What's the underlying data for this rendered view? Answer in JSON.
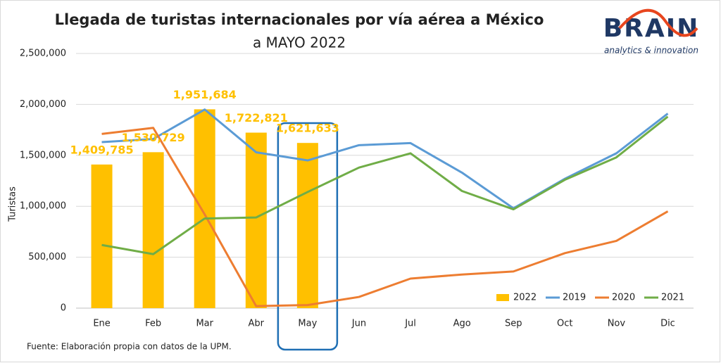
{
  "chart_data": {
    "type": "combo",
    "title": "Llegada de turistas internacionales por vía aérea a México",
    "subtitle": "a MAYO 2022",
    "y_label": "Turistas",
    "source": "Fuente: Elaboración propia con datos de la UPM.",
    "logo": {
      "text": "BRAIN",
      "tagline": "analytics & innovation"
    },
    "categories": [
      "Ene",
      "Feb",
      "Mar",
      "Abr",
      "May",
      "Jun",
      "Jul",
      "Ago",
      "Sep",
      "Oct",
      "Nov",
      "Dic"
    ],
    "highlight": "May",
    "ylim": [
      0,
      2500000
    ],
    "yticks": [
      0,
      {
        "value": 500000,
        "label": "500,000"
      },
      {
        "value": 1000000,
        "label": "1,000,000"
      },
      {
        "value": 1500000,
        "label": "1,500,000"
      },
      {
        "value": 2000000,
        "label": "2,000,000"
      },
      {
        "value": 2500000,
        "label": "2,500,000"
      }
    ],
    "grid": true,
    "legend": "bottom-right",
    "series": [
      {
        "name": "2022",
        "type": "bar",
        "color": "#ffc000",
        "values": [
          1409785,
          1530729,
          1951684,
          1722821,
          1621633,
          null,
          null,
          null,
          null,
          null,
          null,
          null
        ],
        "value_labels": [
          "1,409,785",
          "1,530,729",
          "1,951,684",
          "1,722,821",
          "1,621,633",
          null,
          null,
          null,
          null,
          null,
          null,
          null
        ]
      },
      {
        "name": "2019",
        "type": "line",
        "color": "#5b9bd5",
        "values": [
          1630000,
          1660000,
          1950000,
          1530000,
          1450000,
          1600000,
          1620000,
          1330000,
          980000,
          1270000,
          1520000,
          1910000
        ]
      },
      {
        "name": "2020",
        "type": "line",
        "color": "#ed7d31",
        "values": [
          1710000,
          1770000,
          920000,
          20000,
          30000,
          110000,
          290000,
          330000,
          360000,
          540000,
          660000,
          950000
        ]
      },
      {
        "name": "2021",
        "type": "line",
        "color": "#70ad47",
        "values": [
          620000,
          530000,
          880000,
          890000,
          1140000,
          1380000,
          1520000,
          1150000,
          970000,
          1260000,
          1480000,
          1880000
        ]
      }
    ]
  }
}
